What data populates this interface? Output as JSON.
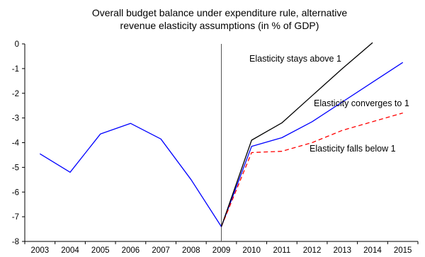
{
  "chart_data": {
    "type": "line",
    "title": [
      "Overall budget balance under expenditure rule, alternative",
      "revenue elasticity assumptions (in % of GDP)"
    ],
    "xlabel": "",
    "ylabel": "",
    "categories": [
      "2003",
      "2004",
      "2005",
      "2006",
      "2007",
      "2008",
      "2009",
      "2010",
      "2011",
      "2012",
      "2013",
      "2014",
      "2015"
    ],
    "ylim": [
      -8,
      0
    ],
    "yticks": [
      0,
      -1,
      -2,
      -3,
      -4,
      -5,
      -6,
      -7,
      -8
    ],
    "grid": false,
    "legend": "none",
    "series": [
      {
        "name": "Elasticity stays above 1",
        "color": "#000000",
        "dash": "solid",
        "values": [
          null,
          null,
          null,
          null,
          null,
          null,
          -7.4,
          -3.9,
          -3.2,
          -2.1,
          -1.0,
          0.05,
          null
        ]
      },
      {
        "name": "Elasticity converges to 1",
        "color": "#0000ff",
        "dash": "solid",
        "values": [
          -4.45,
          -5.2,
          -3.65,
          -3.22,
          -3.85,
          -5.5,
          -7.4,
          -4.15,
          -3.8,
          -3.15,
          -2.35,
          -1.55,
          -0.75
        ]
      },
      {
        "name": "Elasticity falls below 1",
        "color": "#ff0000",
        "dash": "dashed",
        "values": [
          null,
          null,
          null,
          null,
          null,
          null,
          -7.4,
          -4.4,
          -4.35,
          -4.0,
          -3.5,
          -3.15,
          -2.8
        ]
      }
    ],
    "annotations": [
      {
        "text": "Elasticity stays above 1",
        "series": 0
      },
      {
        "text": "Elasticity converges to 1",
        "series": 1
      },
      {
        "text": "Elasticity falls below 1",
        "series": 2
      }
    ],
    "vertical_marker": {
      "x": "2009",
      "color": "#555555"
    }
  }
}
